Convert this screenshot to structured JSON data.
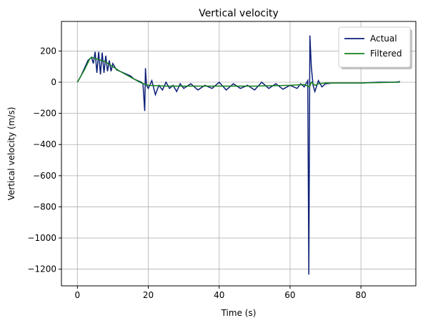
{
  "chart_data": {
    "type": "line",
    "title": "Vertical velocity",
    "xlabel": "Time (s)",
    "ylabel": "Vertical velocity (m/s)",
    "xlim": [
      -4.5,
      95.5
    ],
    "xticks": [
      0,
      20,
      40,
      60,
      80
    ],
    "ylim": [
      -1307,
      390
    ],
    "yticks": [
      {
        "value": -1200,
        "label": "−1200"
      },
      {
        "value": -1000,
        "label": "−1000"
      },
      {
        "value": -800,
        "label": "−800"
      },
      {
        "value": -600,
        "label": "−600"
      },
      {
        "value": -400,
        "label": "−400"
      },
      {
        "value": -200,
        "label": "−200"
      },
      0,
      200
    ],
    "grid": true,
    "legend": "upper right",
    "series": [
      {
        "name": "Actual",
        "color": "#0c1f78",
        "x": [
          0,
          1,
          2,
          3,
          4,
          4.5,
          5,
          5.5,
          6,
          6.5,
          7,
          7.5,
          8,
          8.5,
          9,
          9.5,
          10,
          11,
          12,
          13,
          14,
          15,
          16,
          17,
          18,
          18.5,
          19,
          19.2,
          19.5,
          20,
          21,
          22,
          23,
          24,
          25,
          26,
          27,
          28,
          29,
          30,
          32,
          34,
          36,
          38,
          40,
          42,
          44,
          46,
          48,
          50,
          52,
          54,
          56,
          58,
          60,
          62,
          63,
          64,
          65,
          65.3,
          65.6,
          66,
          66.5,
          67,
          68,
          69,
          70,
          72,
          75,
          80,
          85,
          90,
          91
        ],
        "values": [
          0,
          40,
          90,
          140,
          160,
          120,
          195,
          60,
          195,
          50,
          190,
          60,
          170,
          70,
          140,
          70,
          120,
          80,
          70,
          60,
          50,
          40,
          20,
          10,
          0,
          -10,
          -185,
          90,
          -20,
          -40,
          10,
          -80,
          -20,
          -50,
          0,
          -40,
          -20,
          -60,
          -10,
          -40,
          -10,
          -50,
          -20,
          -40,
          0,
          -50,
          -10,
          -40,
          -20,
          -50,
          0,
          -40,
          -10,
          -45,
          -20,
          -40,
          -10,
          -30,
          10,
          -1235,
          300,
          100,
          -20,
          -60,
          10,
          -30,
          -10,
          -5,
          -5,
          -5,
          0,
          0,
          5
        ]
      },
      {
        "name": "Filtered",
        "color": "#15801f",
        "x": [
          0,
          2,
          3.5,
          4,
          6,
          8,
          10,
          12,
          14,
          16,
          18,
          20,
          25,
          30,
          40,
          50,
          60,
          64,
          65.5,
          66,
          67,
          68,
          70,
          80,
          91
        ],
        "values": [
          0,
          80,
          150,
          160,
          145,
          130,
          100,
          70,
          45,
          20,
          -5,
          -20,
          -25,
          -25,
          -25,
          -25,
          -20,
          -15,
          -30,
          0,
          -20,
          -10,
          -5,
          -5,
          0
        ]
      }
    ]
  }
}
